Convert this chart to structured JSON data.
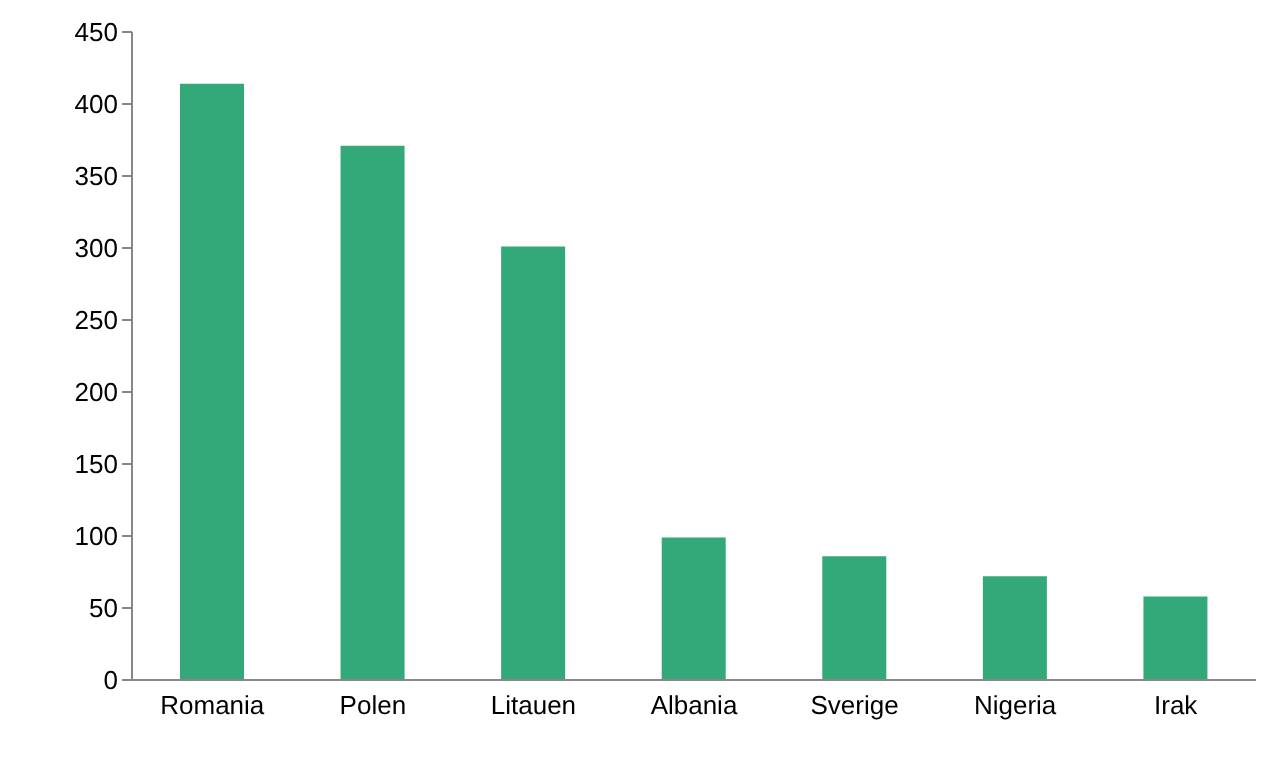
{
  "chart_data": {
    "type": "bar",
    "categories": [
      "Romania",
      "Polen",
      "Litauen",
      "Albania",
      "Sverige",
      "Nigeria",
      "Irak"
    ],
    "values": [
      414,
      371,
      301,
      99,
      86,
      72,
      58
    ],
    "color": "#33a97a",
    "ylim": [
      0,
      450
    ],
    "yticks": [
      0,
      50,
      100,
      150,
      200,
      250,
      300,
      350,
      400,
      450
    ],
    "grid": false,
    "legend": false
  }
}
